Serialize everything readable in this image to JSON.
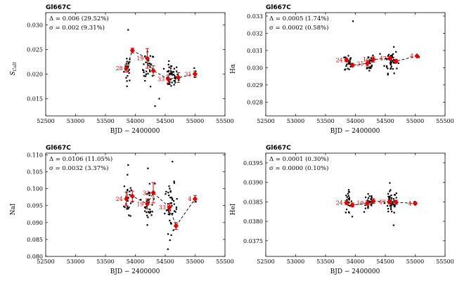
{
  "chart_data": [
    {
      "type": "scatter",
      "title": "Gl667C",
      "xlabel": "BJD − 2400000",
      "ylabel": "S_CaII",
      "xlim": [
        52500,
        55500
      ],
      "ylim": [
        0.0115,
        0.0325
      ],
      "xticks": [
        52500,
        53000,
        53500,
        54000,
        54500,
        55000,
        55500
      ],
      "yticks": [
        0.015,
        0.02,
        0.025,
        0.03
      ],
      "ytick_labels": [
        "0.015",
        "0.020",
        "0.025",
        "0.030"
      ],
      "annotations": [
        "Δ = 0.006 (29.52%)",
        "σ = 0.002 (9.31%)"
      ],
      "binned": {
        "x": [
          53850,
          53950,
          54200,
          54300,
          54550,
          54720,
          55000
        ],
        "y": [
          0.0212,
          0.0248,
          0.0232,
          0.0207,
          0.019,
          0.0193,
          0.02
        ],
        "err": [
          0.0008,
          0.0005,
          0.002,
          0.001,
          0.0008,
          0.001,
          0.0006
        ],
        "labels": [
          {
            "i": 0,
            "text": "28"
          },
          {
            "i": 2,
            "text": "19"
          },
          {
            "i": 4,
            "text": "33"
          },
          {
            "i": 6,
            "text": "31"
          }
        ]
      },
      "clusters": [
        {
          "x": 53870,
          "xs": 50,
          "y": 0.0212,
          "ys": 0.002,
          "n": 22
        },
        {
          "x": 54220,
          "xs": 80,
          "y": 0.021,
          "ys": 0.0025,
          "n": 28
        },
        {
          "x": 54600,
          "xs": 100,
          "y": 0.0195,
          "ys": 0.0018,
          "n": 45
        },
        {
          "x": 55000,
          "xs": 20,
          "y": 0.02,
          "ys": 0.0008,
          "n": 5
        }
      ],
      "extra_points": [
        [
          54330,
          0.0135
        ],
        [
          53880,
          0.029
        ],
        [
          54400,
          0.015
        ]
      ]
    },
    {
      "type": "scatter",
      "title": "Gl667C",
      "xlabel": "BJD − 2400000",
      "ylabel": "Hα",
      "xlim": [
        52500,
        55500
      ],
      "ylim": [
        0.0272,
        0.0332
      ],
      "xticks": [
        52500,
        53000,
        53500,
        54000,
        54500,
        55000,
        55500
      ],
      "yticks": [
        0.028,
        0.029,
        0.03,
        0.031,
        0.032,
        0.033
      ],
      "ytick_labels": [
        "0.028",
        "0.029",
        "0.030",
        "0.031",
        "0.032",
        "0.033"
      ],
      "annotations": [
        "Δ = 0.0005 (1.74%)",
        "σ = 0.0002 (0.58%)"
      ],
      "binned": {
        "x": [
          53850,
          53950,
          54200,
          54300,
          54580,
          54680,
          55030
        ],
        "y": [
          0.03045,
          0.03015,
          0.03025,
          0.03048,
          0.03055,
          0.03038,
          0.03068
        ],
        "err": [
          0.0001,
          0.0001,
          0.00015,
          0.00015,
          0.0001,
          0.0001,
          5e-05
        ],
        "labels": [
          {
            "i": 0,
            "text": "24"
          },
          {
            "i": 2,
            "text": "21"
          },
          {
            "i": 3,
            "text": "16"
          },
          {
            "i": 4,
            "text": "47"
          },
          {
            "i": 6,
            "text": "4"
          }
        ]
      },
      "clusters": [
        {
          "x": 53880,
          "xs": 50,
          "y": 0.0303,
          "ys": 0.0004,
          "n": 25
        },
        {
          "x": 54230,
          "xs": 70,
          "y": 0.0303,
          "ys": 0.0004,
          "n": 25
        },
        {
          "x": 54600,
          "xs": 90,
          "y": 0.0304,
          "ys": 0.0005,
          "n": 45
        },
        {
          "x": 55030,
          "xs": 20,
          "y": 0.03068,
          "ys": 5e-05,
          "n": 4
        }
      ],
      "extra_points": [
        [
          53960,
          0.0327
        ]
      ]
    },
    {
      "type": "scatter",
      "title": "Gl667C",
      "xlabel": "BJD − 2400000",
      "ylabel": "NaI",
      "xlim": [
        52500,
        55500
      ],
      "ylim": [
        0.08,
        0.1105
      ],
      "xticks": [
        52500,
        53000,
        53500,
        54000,
        54500,
        55000,
        55500
      ],
      "yticks": [
        0.08,
        0.085,
        0.09,
        0.095,
        0.1,
        0.105,
        0.11
      ],
      "ytick_labels": [
        "0.080",
        "0.085",
        "0.090",
        "0.095",
        "0.100",
        "0.105",
        "0.110"
      ],
      "annotations": [
        "Δ = 0.0106 (11.05%)",
        "σ = 0.0032 (3.37%)"
      ],
      "binned": {
        "x": [
          53850,
          53950,
          54200,
          54300,
          54570,
          54680,
          55000
        ],
        "y": [
          0.097,
          0.0978,
          0.0955,
          0.0988,
          0.0945,
          0.089,
          0.097
        ],
        "err": [
          0.002,
          0.0015,
          0.0015,
          0.003,
          0.001,
          0.001,
          0.001
        ],
        "labels": [
          {
            "i": 0,
            "text": "24"
          },
          {
            "i": 1,
            "text": "4"
          },
          {
            "i": 2,
            "text": "19"
          },
          {
            "i": 3,
            "text": "33"
          },
          {
            "i": 4,
            "text": "33"
          },
          {
            "i": 6,
            "text": "4"
          }
        ]
      },
      "clusters": [
        {
          "x": 53870,
          "xs": 50,
          "y": 0.097,
          "ys": 0.0045,
          "n": 25
        },
        {
          "x": 54230,
          "xs": 80,
          "y": 0.096,
          "ys": 0.0045,
          "n": 30
        },
        {
          "x": 54600,
          "xs": 90,
          "y": 0.094,
          "ys": 0.005,
          "n": 45
        },
        {
          "x": 55000,
          "xs": 20,
          "y": 0.097,
          "ys": 0.0008,
          "n": 4
        }
      ],
      "extra_points": [
        [
          54620,
          0.108
        ],
        [
          54210,
          0.106
        ],
        [
          53880,
          0.107
        ]
      ]
    },
    {
      "type": "scatter",
      "title": "Gl667C",
      "xlabel": "BJD − 2400000",
      "ylabel": "HeI",
      "xlim": [
        52500,
        55500
      ],
      "ylim": [
        0.0371,
        0.03975
      ],
      "xticks": [
        52500,
        53000,
        53500,
        54000,
        54500,
        55000,
        55500
      ],
      "yticks": [
        0.0375,
        0.038,
        0.0385,
        0.039,
        0.0395
      ],
      "ytick_labels": [
        "0.0375",
        "0.0380",
        "0.0385",
        "0.0390",
        "0.0395"
      ],
      "annotations": [
        "Δ = 0.0001 (0.30%)",
        "σ = 0.0000 (0.10%)"
      ],
      "binned": {
        "x": [
          53850,
          53950,
          54200,
          54300,
          54570,
          54680,
          55000
        ],
        "y": [
          0.03848,
          0.03842,
          0.03847,
          0.03852,
          0.0385,
          0.03849,
          0.03846
        ],
        "err": [
          5e-05,
          5e-05,
          6e-05,
          6e-05,
          5e-05,
          5e-05,
          3e-05
        ],
        "labels": [
          {
            "i": 0,
            "text": "24"
          },
          {
            "i": 2,
            "text": "19"
          },
          {
            "i": 4,
            "text": "47"
          },
          {
            "i": 6,
            "text": "4"
          }
        ]
      },
      "clusters": [
        {
          "x": 53880,
          "xs": 50,
          "y": 0.03848,
          "ys": 0.0002,
          "n": 25
        },
        {
          "x": 54230,
          "xs": 70,
          "y": 0.0385,
          "ys": 0.0002,
          "n": 28
        },
        {
          "x": 54600,
          "xs": 90,
          "y": 0.03848,
          "ys": 0.00022,
          "n": 45
        },
        {
          "x": 55000,
          "xs": 15,
          "y": 0.03846,
          "ys": 4e-05,
          "n": 4
        }
      ],
      "extra_points": [
        [
          54640,
          0.0379
        ]
      ]
    }
  ]
}
